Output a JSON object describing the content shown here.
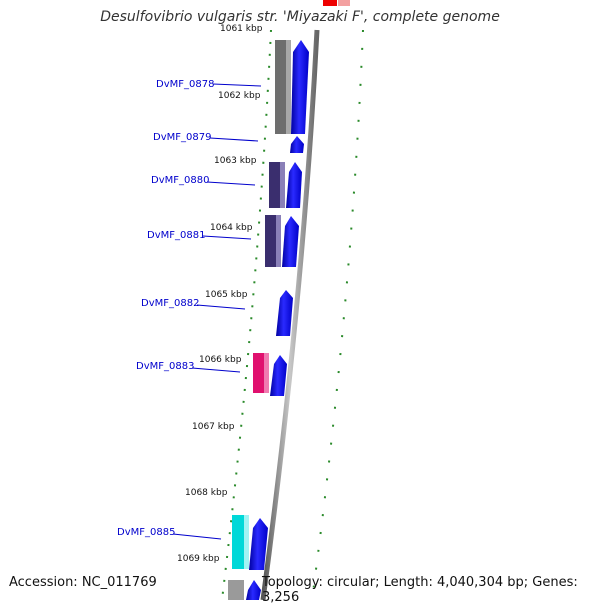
{
  "title": "Desulfovibrio vulgaris str. 'Miyazaki F', complete genome",
  "footer": {
    "accession": "Accession: NC_011769",
    "topology": "Topology: circular; Length: 4,040,304 bp; Genes: 3,256"
  },
  "kbp_labels": [
    "1061 kbp",
    "1062 kbp",
    "1063 kbp",
    "1064 kbp",
    "1065 kbp",
    "1066 kbp",
    "1067 kbp",
    "1068 kbp",
    "1069 kbp"
  ],
  "genes": [
    {
      "label": "DvMF_0878",
      "cog_color": "#6e6e6e"
    },
    {
      "label": "DvMF_0879",
      "cog_color": null
    },
    {
      "label": "DvMF_0880",
      "cog_color": "#3a2e6e"
    },
    {
      "label": "DvMF_0881",
      "cog_color": "#3a2e6e"
    },
    {
      "label": "DvMF_0882",
      "cog_color": null
    },
    {
      "label": "DvMF_0883",
      "cog_color": "#e0106e"
    },
    {
      "label": "DvMF_0885",
      "cog_color": "#00d8d8"
    }
  ],
  "colors": {
    "cds": "#0000ee",
    "backbone": "#888888",
    "tick": "#2a8a2a",
    "label": "#0000cc",
    "top_feature": "#ee0000"
  }
}
